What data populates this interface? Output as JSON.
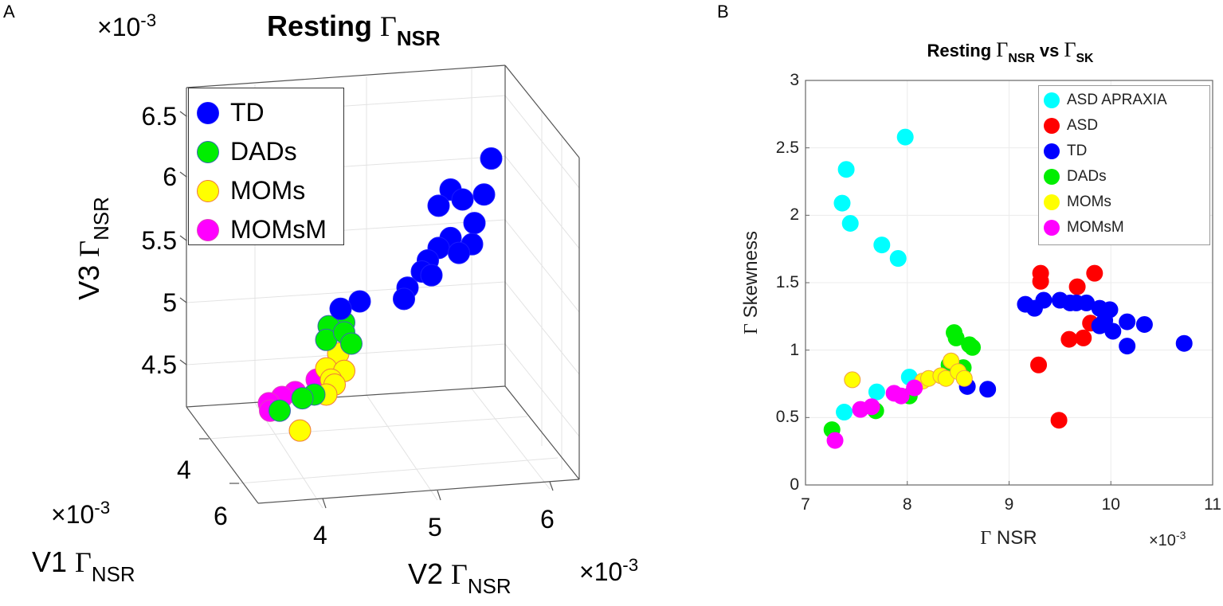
{
  "panels": {
    "a": {
      "letter": "A"
    },
    "b": {
      "letter": "B"
    }
  },
  "chart_data": [
    {
      "type": "scatter",
      "projection": "3d",
      "title": {
        "prefix": "Resting ",
        "symbol": "Γ",
        "sub": "NSR"
      },
      "exponent_label": {
        "base": "×10",
        "exp": "-3"
      },
      "xlabel": {
        "prefix": "V1 ",
        "symbol": "Γ",
        "sub": "NSR"
      },
      "ylabel": {
        "prefix": "V2 ",
        "symbol": "Γ",
        "sub": "NSR"
      },
      "zlabel": {
        "prefix": "V3 ",
        "symbol": "Γ",
        "sub": "NSR"
      },
      "x_ticks": [
        "4",
        "6"
      ],
      "y_ticks": [
        "4",
        "5",
        "6"
      ],
      "z_ticks": [
        "6.5",
        "6",
        "5.5",
        "5",
        "4.5"
      ],
      "grid": true,
      "legend_position": "top-left",
      "series": [
        {
          "name": "TD",
          "color": "#0000ff",
          "edge": "#1a1aff",
          "points": [
            [
              5.51,
              6.16
            ],
            [
              5.17,
              5.91
            ],
            [
              5.27,
              5.83
            ],
            [
              5.07,
              5.78
            ],
            [
              5.45,
              5.87
            ],
            [
              5.37,
              5.64
            ],
            [
              5.17,
              5.52
            ],
            [
              5.35,
              5.47
            ],
            [
              5.07,
              5.44
            ],
            [
              4.98,
              5.34
            ],
            [
              5.24,
              5.4
            ],
            [
              4.93,
              5.25
            ],
            [
              4.81,
              5.12
            ],
            [
              4.78,
              5.03
            ],
            [
              5.01,
              5.22
            ],
            [
              4.41,
              5.01
            ],
            [
              4.25,
              4.95
            ]
          ]
        },
        {
          "name": "DADs",
          "color": "#00ee00",
          "edge": "#3a6ab0",
          "points": [
            [
              4.28,
              4.84
            ],
            [
              4.15,
              4.81
            ],
            [
              4.13,
              4.7
            ],
            [
              4.28,
              4.76
            ],
            [
              4.34,
              4.67
            ],
            [
              4.03,
              4.26
            ],
            [
              3.74,
              4.13
            ],
            [
              3.93,
              4.23
            ]
          ]
        },
        {
          "name": "MOMs",
          "color": "#ffff00",
          "edge": "#f07a3a",
          "points": [
            [
              4.23,
              4.59
            ],
            [
              4.13,
              4.47
            ],
            [
              4.28,
              4.45
            ],
            [
              4.17,
              4.38
            ],
            [
              4.2,
              4.34
            ],
            [
              4.13,
              4.26
            ],
            [
              3.91,
              3.97
            ]
          ]
        },
        {
          "name": "MOMsM",
          "color": "#ff00ff",
          "edge": "#e040c0",
          "points": [
            [
              4.05,
              4.38
            ],
            [
              3.87,
              4.28
            ],
            [
              3.76,
              4.24
            ],
            [
              3.65,
              4.19
            ],
            [
              3.66,
              4.13
            ]
          ]
        }
      ]
    },
    {
      "type": "scatter",
      "title": {
        "prefix": "Resting ",
        "symbol": "Γ",
        "sub": "NSR",
        "mid": " vs ",
        "symbol2": "Γ",
        "sub2": "SK"
      },
      "xlabel": {
        "symbol": "Γ",
        "text": " NSR"
      },
      "ylabel": {
        "symbol": "Γ",
        "text": " Skewness"
      },
      "x_exponent": {
        "base": "×10",
        "exp": "-3"
      },
      "xlim": [
        7,
        11
      ],
      "ylim": [
        0,
        3
      ],
      "x_ticks": [
        "7",
        "8",
        "9",
        "10",
        "11"
      ],
      "y_ticks": [
        "0",
        "0.5",
        "1",
        "1.5",
        "2",
        "2.5",
        "3"
      ],
      "grid": true,
      "legend_position": "top-right",
      "series": [
        {
          "name": "ASD APRAXIA",
          "color": "#00ffff",
          "points": [
            [
              7.98,
              2.58
            ],
            [
              7.4,
              2.34
            ],
            [
              7.36,
              2.09
            ],
            [
              7.44,
              1.94
            ],
            [
              7.75,
              1.78
            ],
            [
              7.91,
              1.68
            ],
            [
              8.02,
              0.8
            ],
            [
              7.7,
              0.69
            ],
            [
              7.38,
              0.54
            ]
          ]
        },
        {
          "name": "ASD",
          "color": "#ff0000",
          "points": [
            [
              9.31,
              1.57
            ],
            [
              9.31,
              1.51
            ],
            [
              9.84,
              1.57
            ],
            [
              9.67,
              1.47
            ],
            [
              9.8,
              1.2
            ],
            [
              9.59,
              1.08
            ],
            [
              9.73,
              1.09
            ],
            [
              9.29,
              0.89
            ],
            [
              9.49,
              0.48
            ]
          ]
        },
        {
          "name": "TD",
          "color": "#0000ff",
          "points": [
            [
              9.16,
              1.34
            ],
            [
              9.25,
              1.31
            ],
            [
              9.34,
              1.37
            ],
            [
              9.5,
              1.37
            ],
            [
              9.6,
              1.35
            ],
            [
              9.66,
              1.35
            ],
            [
              9.76,
              1.35
            ],
            [
              9.89,
              1.31
            ],
            [
              9.99,
              1.3
            ],
            [
              9.94,
              1.22
            ],
            [
              9.89,
              1.18
            ],
            [
              10.02,
              1.14
            ],
            [
              10.16,
              1.21
            ],
            [
              10.33,
              1.19
            ],
            [
              10.16,
              1.03
            ],
            [
              10.72,
              1.05
            ],
            [
              8.59,
              0.73
            ],
            [
              8.79,
              0.71
            ]
          ]
        },
        {
          "name": "DADs",
          "color": "#00ee00",
          "points": [
            [
              8.46,
              1.13
            ],
            [
              8.48,
              1.09
            ],
            [
              8.61,
              1.04
            ],
            [
              8.64,
              1.02
            ],
            [
              8.55,
              0.87
            ],
            [
              8.41,
              0.89
            ],
            [
              7.26,
              0.41
            ],
            [
              7.69,
              0.55
            ],
            [
              8.02,
              0.66
            ]
          ]
        },
        {
          "name": "MOMs",
          "color": "#ffff00",
          "points": [
            [
              7.46,
              0.78
            ],
            [
              8.15,
              0.77
            ],
            [
              8.21,
              0.79
            ],
            [
              8.33,
              0.81
            ],
            [
              8.38,
              0.79
            ],
            [
              8.43,
              0.92
            ],
            [
              8.5,
              0.84
            ],
            [
              8.56,
              0.79
            ]
          ]
        },
        {
          "name": "MOMsM",
          "color": "#ff00ff",
          "points": [
            [
              7.29,
              0.33
            ],
            [
              7.54,
              0.56
            ],
            [
              7.65,
              0.58
            ],
            [
              7.87,
              0.68
            ],
            [
              7.94,
              0.66
            ],
            [
              8.07,
              0.72
            ]
          ]
        }
      ]
    }
  ]
}
